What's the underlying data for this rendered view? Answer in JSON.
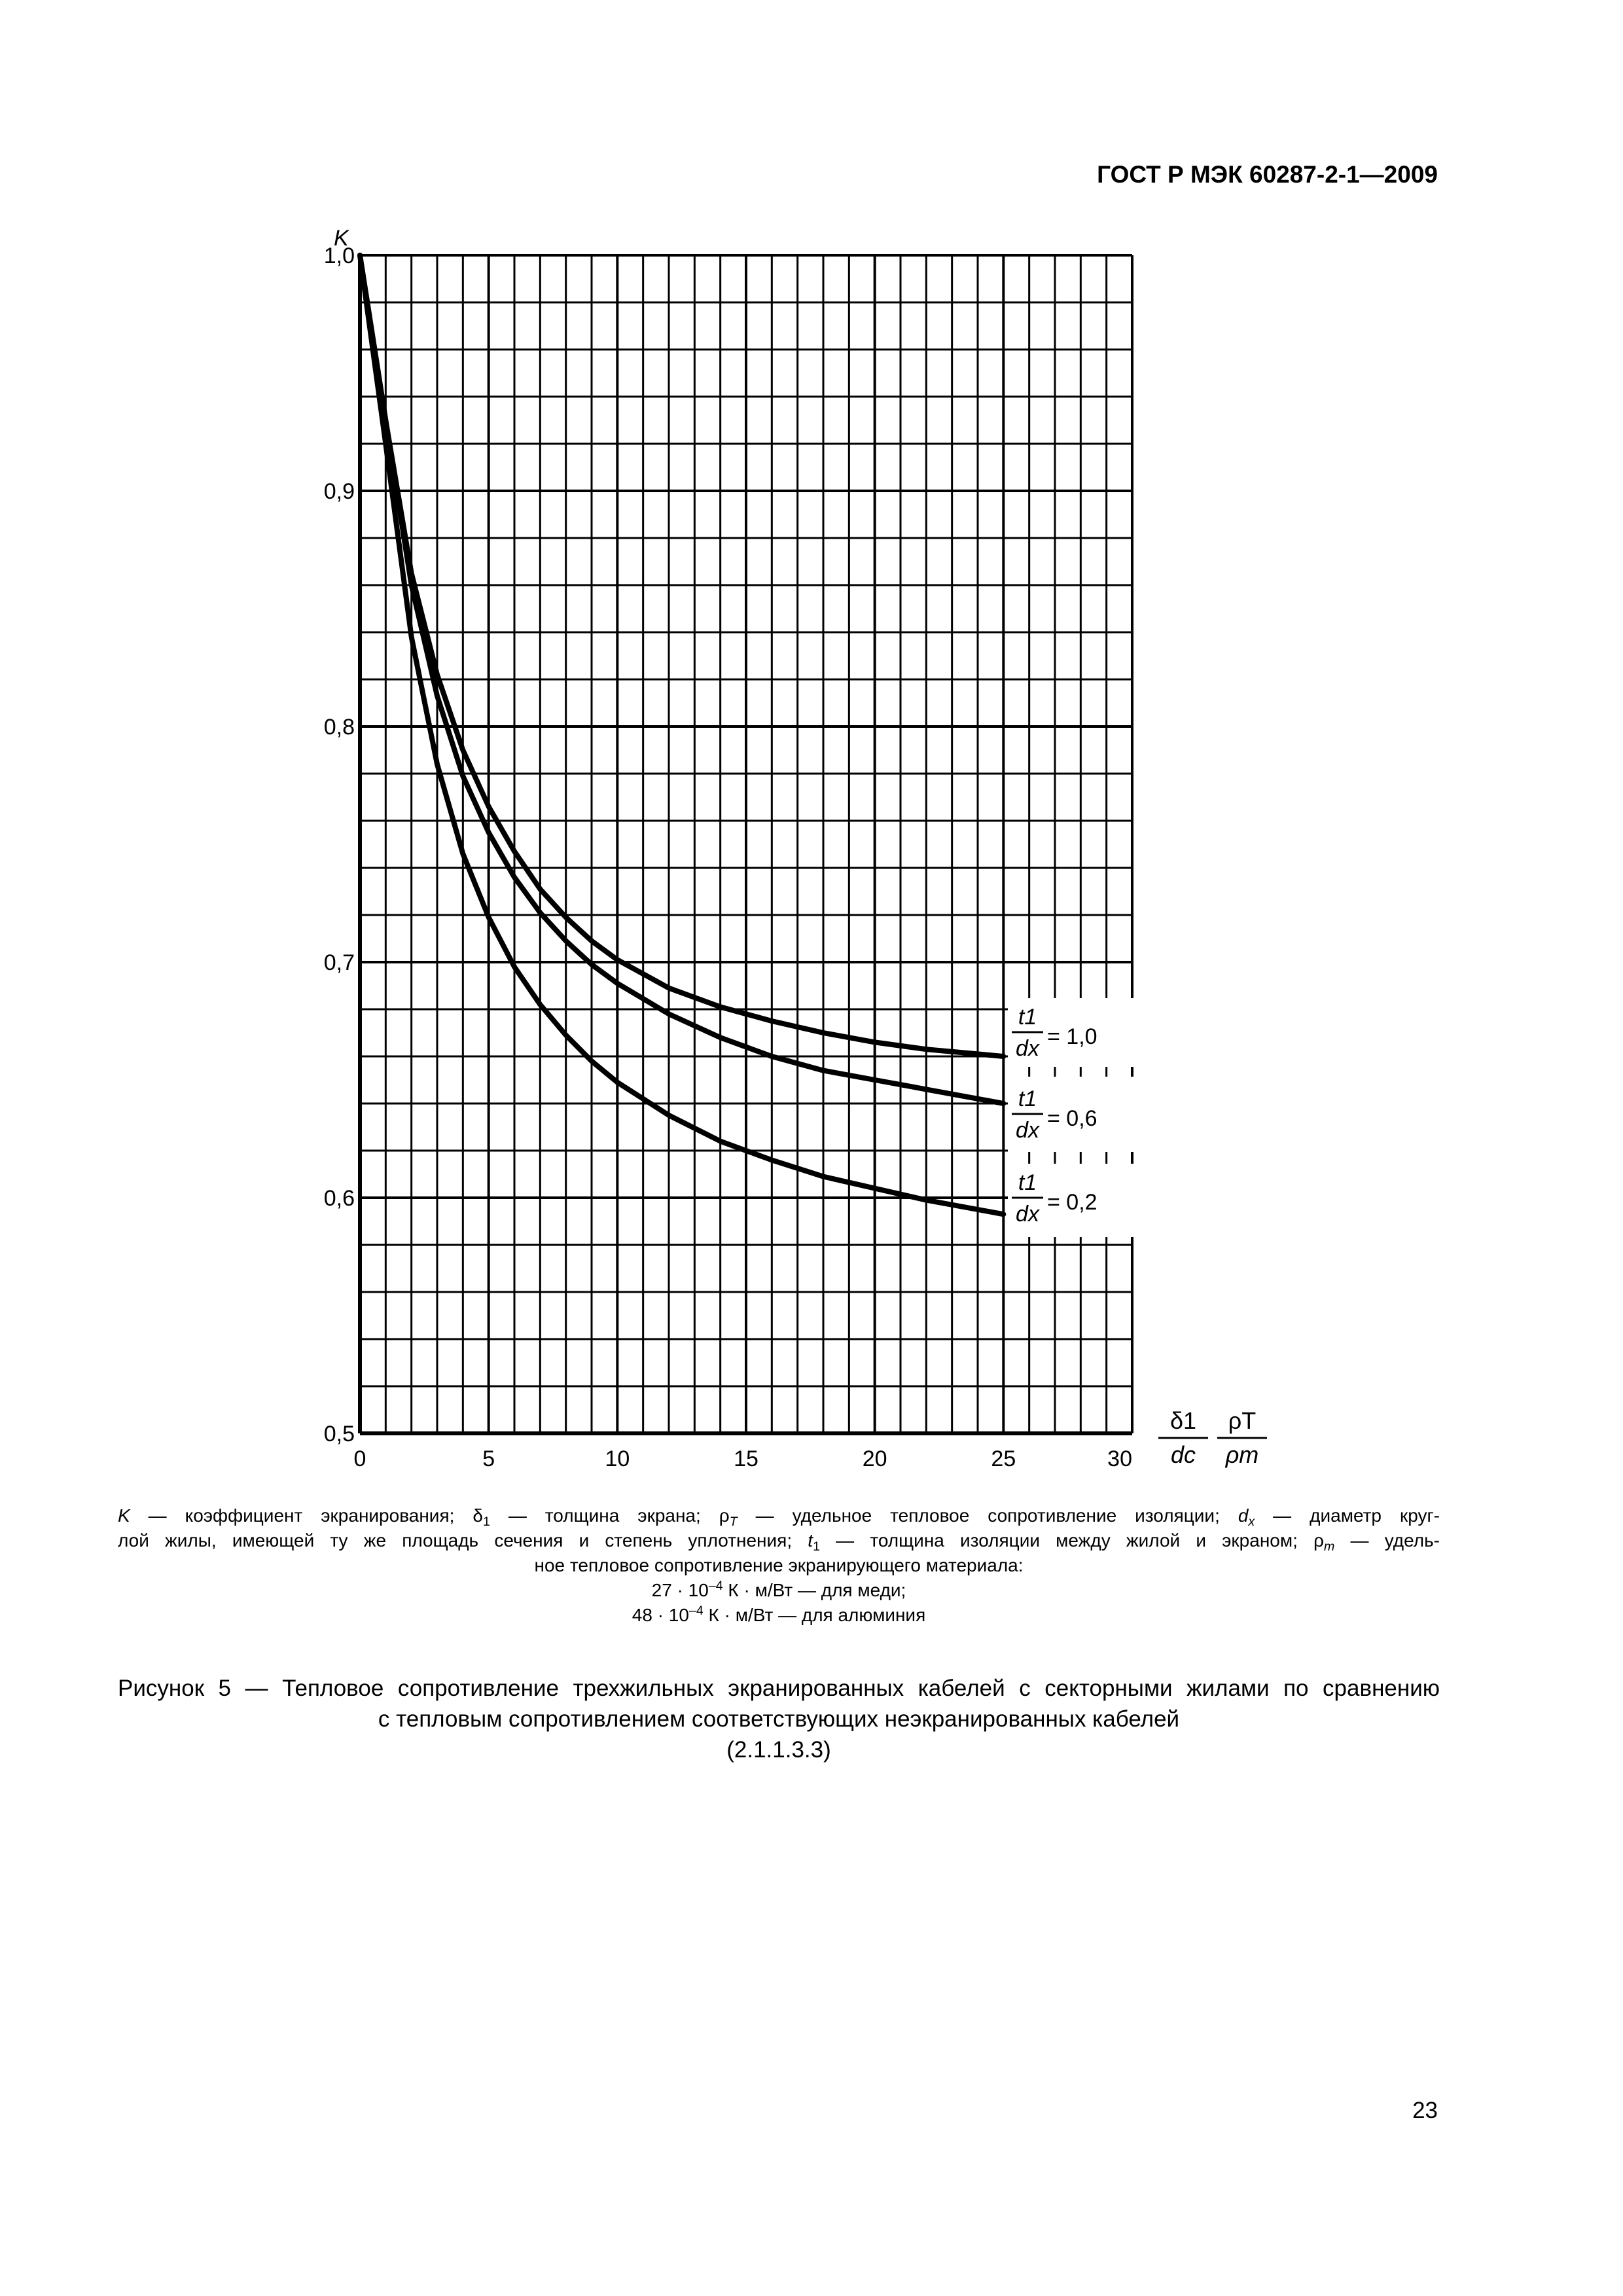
{
  "header": {
    "standard": "ГОСТ Р МЭК 60287-2-1—2009"
  },
  "chart_data": {
    "type": "line",
    "ylabel": "K",
    "xlabel_fraction_1": {
      "num": "δ1",
      "den": "dc"
    },
    "xlabel_fraction_2": {
      "num": "ρT",
      "den": "ρm"
    },
    "xlim": [
      0,
      30
    ],
    "ylim": [
      0.5,
      1.0
    ],
    "x_ticks": [
      "0",
      "5",
      "10",
      "15",
      "20",
      "25",
      "30"
    ],
    "y_ticks": [
      "0,5",
      "0,6",
      "0,7",
      "0,8",
      "0,9",
      "1,0"
    ],
    "grid": true,
    "series": [
      {
        "name": "t1/dx = 1,0",
        "label_num": "t1",
        "label_den": "dx",
        "label_value": "= 1,0",
        "points": [
          [
            0,
            1.0
          ],
          [
            1,
            0.93
          ],
          [
            2,
            0.865
          ],
          [
            3,
            0.822
          ],
          [
            4,
            0.79
          ],
          [
            5,
            0.766
          ],
          [
            6,
            0.747
          ],
          [
            7,
            0.731
          ],
          [
            8,
            0.719
          ],
          [
            9,
            0.709
          ],
          [
            10,
            0.701
          ],
          [
            12,
            0.689
          ],
          [
            14,
            0.681
          ],
          [
            16,
            0.675
          ],
          [
            18,
            0.67
          ],
          [
            20,
            0.666
          ],
          [
            22,
            0.663
          ],
          [
            24,
            0.661
          ],
          [
            25,
            0.66
          ]
        ]
      },
      {
        "name": "t1/dx = 0,6",
        "label_num": "t1",
        "label_den": "dx",
        "label_value": "= 0,6",
        "points": [
          [
            0,
            1.0
          ],
          [
            1,
            0.93
          ],
          [
            2,
            0.86
          ],
          [
            3,
            0.813
          ],
          [
            4,
            0.779
          ],
          [
            5,
            0.755
          ],
          [
            6,
            0.736
          ],
          [
            7,
            0.721
          ],
          [
            8,
            0.709
          ],
          [
            9,
            0.699
          ],
          [
            10,
            0.691
          ],
          [
            12,
            0.678
          ],
          [
            14,
            0.668
          ],
          [
            16,
            0.66
          ],
          [
            18,
            0.654
          ],
          [
            20,
            0.65
          ],
          [
            22,
            0.646
          ],
          [
            24,
            0.642
          ],
          [
            25,
            0.64
          ]
        ]
      },
      {
        "name": "t1/dx = 0,2",
        "label_num": "t1",
        "label_den": "dx",
        "label_value": "= 0,2",
        "points": [
          [
            0,
            1.0
          ],
          [
            1,
            0.92
          ],
          [
            2,
            0.838
          ],
          [
            3,
            0.784
          ],
          [
            4,
            0.746
          ],
          [
            5,
            0.719
          ],
          [
            6,
            0.698
          ],
          [
            7,
            0.682
          ],
          [
            8,
            0.669
          ],
          [
            9,
            0.658
          ],
          [
            10,
            0.649
          ],
          [
            12,
            0.635
          ],
          [
            14,
            0.624
          ],
          [
            16,
            0.616
          ],
          [
            18,
            0.609
          ],
          [
            20,
            0.604
          ],
          [
            22,
            0.599
          ],
          [
            24,
            0.595
          ],
          [
            25,
            0.593
          ]
        ]
      }
    ]
  },
  "legend_key": {
    "line1": "K — коэффициент экранирования; δ1 — толщина экрана; ρT — удельное тепловое сопротивление изоляции; dx — диаметр круг-",
    "line2": "лой жилы, имеющей ту же площадь сечения и степень уплотнения; t1 — толщина изоляции между жилой и экраном; ρm — удель-",
    "line3": "ное тепловое сопротивление экранирующего материала:",
    "line4": "27 · 10–4 К · м/Вт — для меди;",
    "line5": "48 · 10–4 К · м/Вт — для алюминия"
  },
  "caption": {
    "line1": "Рисунок  5 — Тепловое сопротивление трехжильных экранированных кабелей с секторными жилами по сравнению",
    "line2": "с тепловым сопротивлением соответствующих неэкранированных кабелей",
    "line3": "(2.1.1.3.3)"
  },
  "page_number": "23"
}
